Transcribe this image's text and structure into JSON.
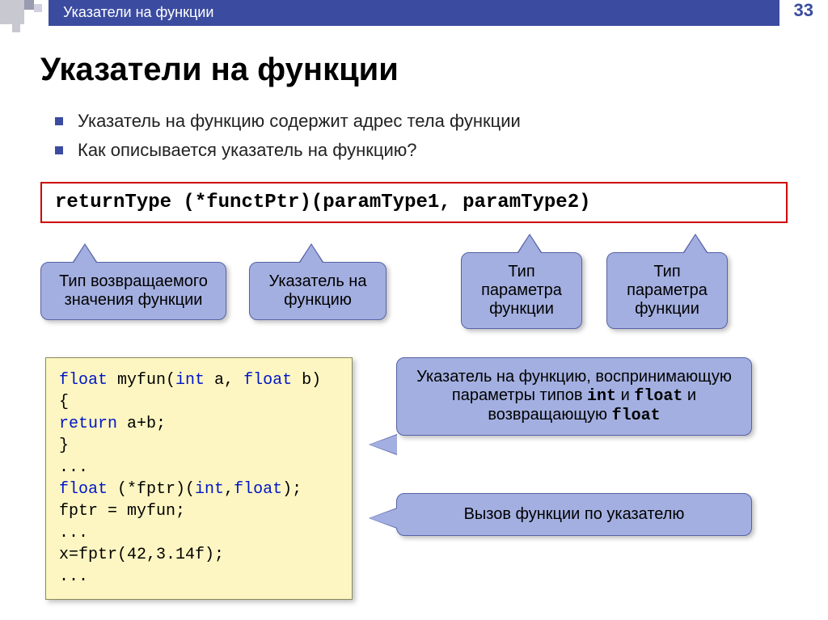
{
  "header": {
    "breadcrumb": "Указатели на функции",
    "page_number": "33"
  },
  "title": "Указатели на функции",
  "bullets": [
    "Указатель на функцию содержит адрес тела функции",
    "Как описывается указатель на функцию?"
  ],
  "syntax": "returnType  (*functPtr)(paramType1, paramType2)",
  "callouts": {
    "c1": "Тип возвращаемого значения функции",
    "c2": "Указатель на функцию",
    "c3": "Тип параметра функции",
    "c4": "Тип параметра функции"
  },
  "code": {
    "l1a": "float",
    "l1b": " myfun(",
    "l1c": "int",
    "l1d": " a, ",
    "l1e": "float",
    "l1f": " b)",
    "l2": "{",
    "l3a": "  return",
    "l3b": " a+b;",
    "l4": "}",
    "l5": "...",
    "l6a": "float",
    "l6b": " (*fptr)(",
    "l6c": "int",
    "l6d": ",",
    "l6e": "float",
    "l6f": ");",
    "l7": "fptr = myfun;",
    "l8": "...",
    "l9": "x=fptr(42,3.14f);",
    "l10": "..."
  },
  "right_callouts": {
    "r1_pre": "Указатель на функцию, воспринимающую параметры типов ",
    "r1_t1": "int",
    "r1_mid": " и ",
    "r1_t2": "float",
    "r1_mid2": " и возвращающую ",
    "r1_t3": "float",
    "r2": "Вызов функции по указателю"
  },
  "colors": {
    "header_bg": "#3b4ba0",
    "callout_bg": "#a3afe0",
    "callout_border": "#5862a8",
    "code_bg": "#fdf6c2",
    "syntax_border": "#cc0000",
    "keyword_blue": "#0016c8"
  }
}
